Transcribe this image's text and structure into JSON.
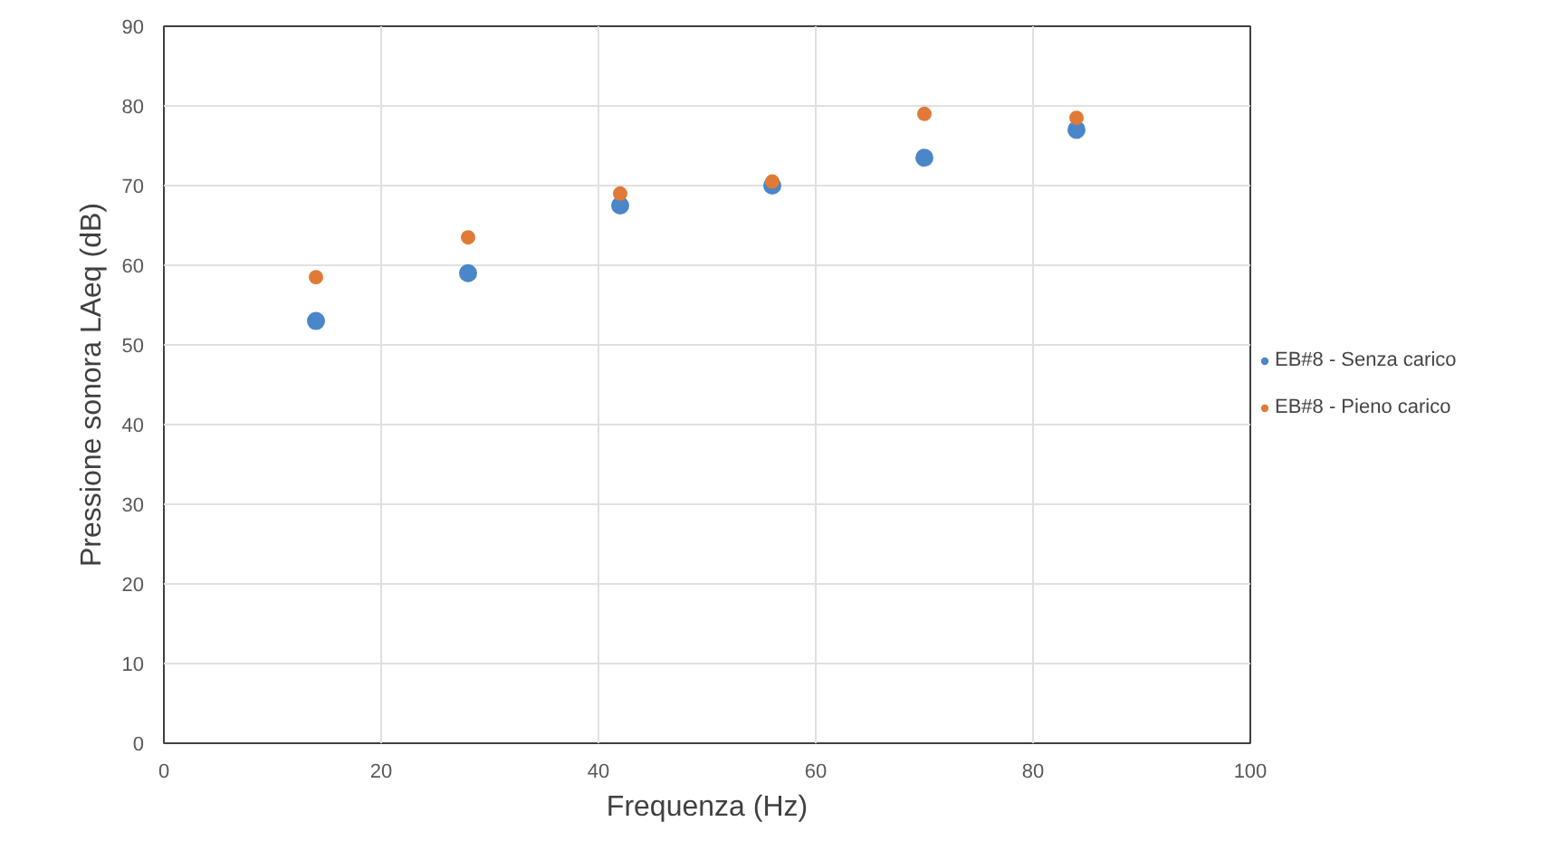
{
  "chart_data": {
    "type": "scatter",
    "xlabel": "Frequenza (Hz)",
    "ylabel": "Pressione sonora LAeq (dB)",
    "x": [
      14,
      28,
      42,
      56,
      70,
      84
    ],
    "series": [
      {
        "name": "EB#8 - Senza carico",
        "color": "#4a86c8",
        "values": [
          53,
          59,
          67.5,
          70,
          73.5,
          77
        ]
      },
      {
        "name": "EB#8 - Pieno carico",
        "color": "#e07a36",
        "values": [
          58.5,
          63.5,
          69,
          70.5,
          79,
          78.5
        ]
      }
    ],
    "xlim": [
      0,
      100
    ],
    "xticks": [
      0,
      20,
      40,
      60,
      80,
      100
    ],
    "ylim": [
      0,
      90
    ],
    "yticks": [
      0,
      10,
      20,
      30,
      40,
      50,
      60,
      70,
      80,
      90
    ],
    "grid": true,
    "legend": "right",
    "marker": "circle"
  }
}
